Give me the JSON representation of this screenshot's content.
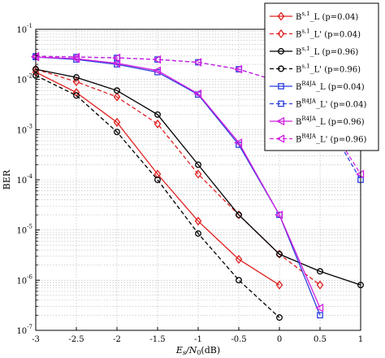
{
  "chart_data": {
    "type": "line",
    "ylabel": "BER",
    "xlabel_main": "E",
    "xlabel_sub": "s",
    "xlabel_slash": "/N",
    "xlabel_sub2": "0",
    "xlabel_unit": "(dB)",
    "xlim": [
      -3,
      1
    ],
    "ylim_exp": [
      -7,
      -1
    ],
    "log_y": true,
    "grid": true,
    "legend_position": "top-right",
    "x_ticks": [
      "-3",
      "-2.5",
      "-2",
      "-1.5",
      "-1",
      "-0.5",
      "0",
      "0.5",
      "1"
    ],
    "x_tick_values": [
      -3,
      -2.5,
      -2,
      -1.5,
      -1,
      -0.5,
      0,
      0.5,
      1
    ],
    "y_tick_exponents": [
      "-7",
      "-6",
      "-5",
      "-4",
      "-3",
      "-2",
      "-1"
    ],
    "y_tick_base": "10",
    "series": [
      {
        "name_base": "B",
        "name_sup": "s,1",
        "name_rest": "_L (p=0.04)",
        "color": "#e02020",
        "dash": false,
        "marker": "diamond",
        "x": [
          -3,
          -2.5,
          -2,
          -1.5,
          -1,
          -0.5,
          0
        ],
        "y": [
          0.014,
          0.0055,
          0.0014,
          0.00013,
          1.5e-05,
          2.6e-06,
          8e-07
        ]
      },
      {
        "name_base": "B",
        "name_sup": "s,1",
        "name_rest": "_L' (p=0.04)",
        "color": "#e02020",
        "dash": true,
        "marker": "diamond",
        "x": [
          -3,
          -2.5,
          -2,
          -1.5,
          -1,
          -0.5,
          0,
          0.5
        ],
        "y": [
          0.016,
          0.009,
          0.0045,
          0.0013,
          0.00013,
          2e-05,
          3.3e-06,
          8e-07
        ]
      },
      {
        "name_base": "B",
        "name_sup": "s,1",
        "name_rest": "_L (p=0.96)",
        "color": "#000000",
        "dash": false,
        "marker": "circle",
        "x": [
          -3,
          -2.5,
          -2,
          -1.5,
          -1,
          -0.5,
          0,
          0.5,
          1
        ],
        "y": [
          0.016,
          0.011,
          0.006,
          0.002,
          0.0002,
          2e-05,
          3.3e-06,
          1.5e-06,
          8e-07
        ]
      },
      {
        "name_base": "B",
        "name_sup": "s,1",
        "name_rest": "_L' (p=0.96)",
        "color": "#000000",
        "dash": true,
        "marker": "circle",
        "x": [
          -3,
          -2.5,
          -2,
          -1.5,
          -1,
          -0.5,
          0
        ],
        "y": [
          0.012,
          0.0048,
          0.0009,
          0.0001,
          8.5e-06,
          1e-06,
          1.8e-07
        ]
      },
      {
        "name_base": "B",
        "name_sup": "R4JA",
        "name_rest": "_L (p=0.04)",
        "color": "#2a3fe0",
        "dash": false,
        "marker": "square",
        "x": [
          -3,
          -2.5,
          -2,
          -1.5,
          -1,
          -0.5,
          0,
          0.5
        ],
        "y": [
          0.028,
          0.025,
          0.02,
          0.014,
          0.005,
          0.0005,
          2e-05,
          2e-07
        ]
      },
      {
        "name_base": "B",
        "name_sup": "R4JA",
        "name_rest": "_L' (p=0.04)",
        "color": "#2a3fe0",
        "dash": true,
        "marker": "square",
        "x": [
          -3,
          -2.5,
          -2,
          -1.5,
          -1,
          -0.5,
          0,
          0.5,
          1
        ],
        "y": [
          0.029,
          0.028,
          0.027,
          0.025,
          0.022,
          0.016,
          0.009,
          0.0025,
          0.0001
        ]
      },
      {
        "name_base": "B",
        "name_sup": "R4JA",
        "name_rest": "_L (p=0.96)",
        "color": "#d020e0",
        "dash": false,
        "marker": "triangle-left",
        "x": [
          -3,
          -2.5,
          -2,
          -1.5,
          -1,
          -0.5,
          0,
          0.5
        ],
        "y": [
          0.028,
          0.026,
          0.021,
          0.015,
          0.0052,
          0.00055,
          2e-05,
          2.8e-07
        ]
      },
      {
        "name_base": "B",
        "name_sup": "R4JA",
        "name_rest": "_L' (p=0.96)",
        "color": "#d020e0",
        "dash": true,
        "marker": "triangle-left",
        "x": [
          -3,
          -2.5,
          -2,
          -1.5,
          -1,
          -0.5,
          0,
          0.5,
          1
        ],
        "y": [
          0.029,
          0.028,
          0.027,
          0.025,
          0.022,
          0.016,
          0.009,
          0.0025,
          0.00013
        ]
      }
    ]
  }
}
